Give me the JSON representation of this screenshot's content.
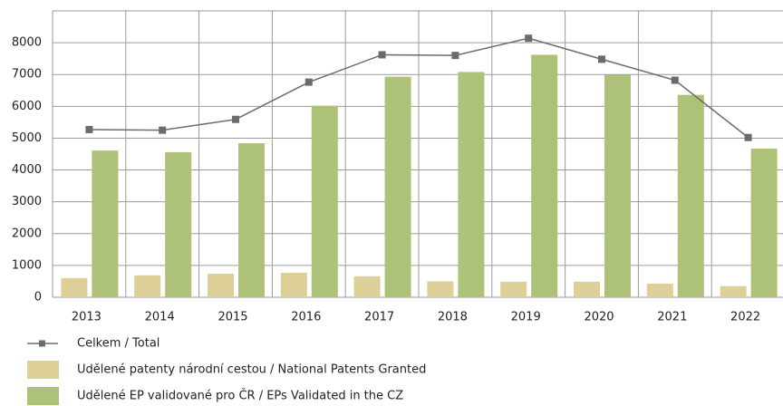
{
  "chart_data": {
    "type": "bar_line",
    "categories": [
      "2013",
      "2014",
      "2015",
      "2016",
      "2017",
      "2018",
      "2019",
      "2020",
      "2021",
      "2022"
    ],
    "series": [
      {
        "name": "Celkem / Total",
        "type": "line",
        "color": "#6b6b6b",
        "values": [
          5270,
          5250,
          5590,
          6760,
          7620,
          7600,
          8140,
          7480,
          6820,
          5020
        ]
      },
      {
        "name": "Udělené patenty národní cestou / National Patents Granted",
        "type": "bar",
        "color": "#dccf97",
        "values": [
          600,
          690,
          740,
          770,
          660,
          500,
          490,
          490,
          430,
          350
        ]
      },
      {
        "name": "Udělené EP validované pro ČR / EPs Validated in the CZ",
        "type": "bar",
        "color": "#adc178",
        "values": [
          4610,
          4560,
          4840,
          6020,
          6930,
          7080,
          7620,
          6990,
          6360,
          4670
        ]
      }
    ],
    "ylim": [
      0,
      9000
    ],
    "yticks": [
      0,
      1000,
      2000,
      3000,
      4000,
      5000,
      6000,
      7000,
      8000
    ],
    "grid": true
  }
}
